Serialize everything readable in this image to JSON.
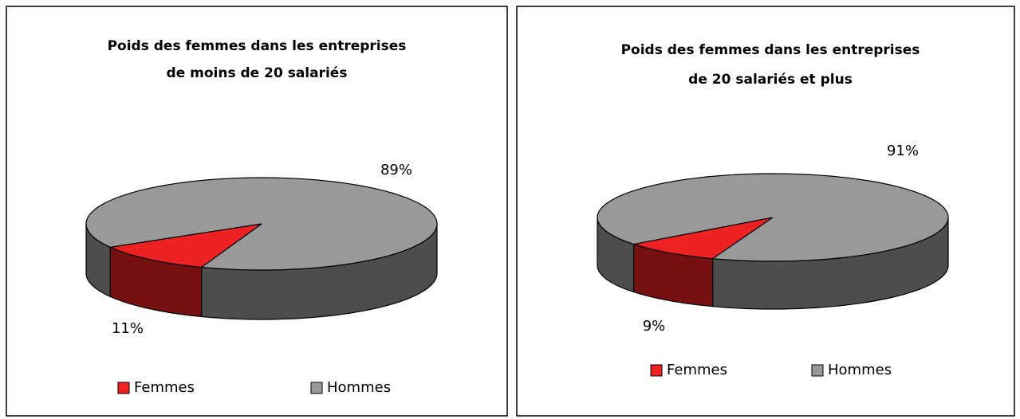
{
  "chart_data": [
    {
      "type": "pie",
      "title": [
        "Poids des femmes dans les entreprises",
        "de moins de 20 salariés"
      ],
      "categories": [
        "Femmes",
        "Hommes"
      ],
      "values": [
        11,
        89
      ],
      "value_labels": [
        "11%",
        "89%"
      ],
      "colors": [
        "#ee2222",
        "#999999"
      ],
      "legend": "bottom"
    },
    {
      "type": "pie",
      "title": [
        "Poids des femmes dans les entreprises",
        "de 20 salariés et plus"
      ],
      "categories": [
        "Femmes",
        "Hommes"
      ],
      "values": [
        9,
        91
      ],
      "value_labels": [
        "9%",
        "91%"
      ],
      "colors": [
        "#ee2222",
        "#999999"
      ],
      "legend": "bottom"
    }
  ]
}
